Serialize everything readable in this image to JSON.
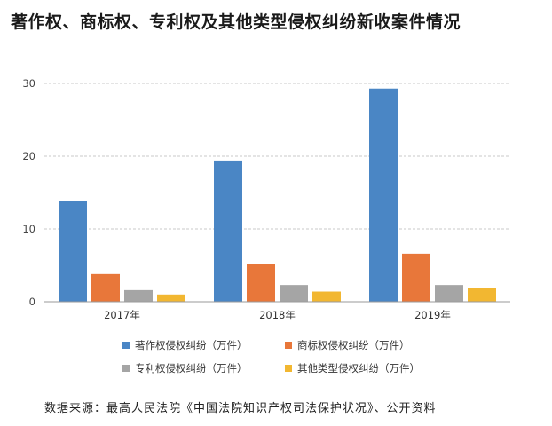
{
  "chart_data": {
    "type": "bar",
    "title": "著作权、商标权、专利权及其他类型侵权纠纷新收案件情况",
    "categories": [
      "2017年",
      "2018年",
      "2019年"
    ],
    "series": [
      {
        "name": "著作权侵权纠纷（万件）",
        "values": [
          13.8,
          19.4,
          29.3
        ],
        "color": "#4a86c5"
      },
      {
        "name": "商标权侵权纠纷（万件）",
        "values": [
          3.8,
          5.2,
          6.6
        ],
        "color": "#e8773a"
      },
      {
        "name": "专利权侵权纠纷（万件）",
        "values": [
          1.6,
          2.3,
          2.3
        ],
        "color": "#a5a5a5"
      },
      {
        "name": "其他类型侵权纠纷（万件）",
        "values": [
          1.0,
          1.4,
          1.9
        ],
        "color": "#f2b731"
      }
    ],
    "yticks": [
      0,
      10,
      20,
      30
    ],
    "ylim": [
      0,
      30
    ],
    "xlabel": "",
    "ylabel": "",
    "grid": true,
    "legend_position": "bottom"
  },
  "source": "数据来源：最高人民法院《中国法院知识产权司法保护状况》、公开资料"
}
